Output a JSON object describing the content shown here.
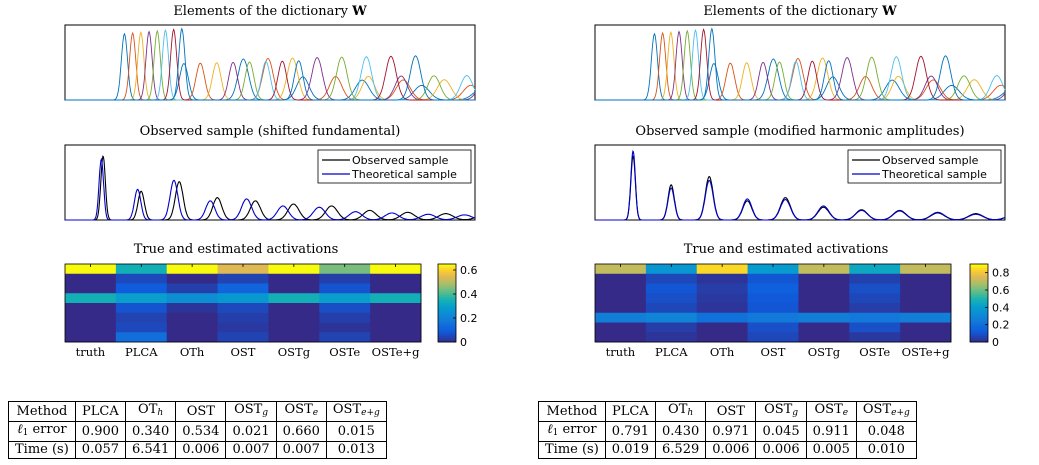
{
  "panels": [
    {
      "side": "left",
      "dict_title": "Elements of the dictionary",
      "dict_title_bold": "W",
      "sample_title": "Observed sample (shifted fundamental)",
      "act_title": "True and estimated activations",
      "legend": [
        "Observed sample",
        "Theoretical sample"
      ],
      "colorbar_ticks": [
        "0.6",
        "0.4",
        "0.2",
        "0"
      ],
      "methods": [
        "truth",
        "PLCA",
        "OTh",
        "OST",
        "OSTg",
        "OSTe",
        "OSTe+g"
      ]
    },
    {
      "side": "right",
      "dict_title": "Elements of the dictionary",
      "dict_title_bold": "W",
      "sample_title": "Observed sample (modified harmonic amplitudes)",
      "act_title": "True and estimated activations",
      "legend": [
        "Observed sample",
        "Theoretical sample"
      ],
      "colorbar_ticks": [
        "0.8",
        "0.6",
        "0.4",
        "0.2",
        "0"
      ],
      "methods": [
        "truth",
        "PLCA",
        "OTh",
        "OST",
        "OSTg",
        "OSTe",
        "OSTe+g"
      ]
    }
  ],
  "tables": [
    {
      "header": [
        "Method",
        "PLCA",
        "OT",
        "OST",
        "OST",
        "OST",
        "OST"
      ],
      "header_sub": [
        "",
        "",
        "h",
        "",
        "g",
        "e",
        "e+g"
      ],
      "rows": [
        {
          "label": "ℓ",
          "label_sub": "1",
          "label_rest": " error",
          "values": [
            "0.900",
            "0.340",
            "0.534",
            "0.021",
            "0.660",
            "0.015"
          ]
        },
        {
          "label": "Time (s)",
          "label_sub": "",
          "label_rest": "",
          "values": [
            "0.057",
            "6.541",
            "0.006",
            "0.007",
            "0.007",
            "0.013"
          ]
        }
      ]
    },
    {
      "header": [
        "Method",
        "PLCA",
        "OT",
        "OST",
        "OST",
        "OST",
        "OST"
      ],
      "header_sub": [
        "",
        "",
        "h",
        "",
        "g",
        "e",
        "e+g"
      ],
      "rows": [
        {
          "label": "ℓ",
          "label_sub": "1",
          "label_rest": " error",
          "values": [
            "0.791",
            "0.430",
            "0.971",
            "0.045",
            "0.911",
            "0.048"
          ]
        },
        {
          "label": "Time (s)",
          "label_sub": "",
          "label_rest": "",
          "values": [
            "0.019",
            "6.529",
            "0.006",
            "0.006",
            "0.005",
            "0.010"
          ]
        }
      ]
    }
  ],
  "chart_data": [
    {
      "type": "line",
      "title": "Elements of the dictionary W",
      "series_colors": [
        "#0072bd",
        "#d95319",
        "#edb120",
        "#7e2f8e",
        "#77ac30",
        "#4dbeee",
        "#a2142f",
        "#0072bd"
      ],
      "fundamentals": [
        0.145,
        0.165,
        0.185,
        0.205,
        0.225,
        0.245,
        0.265,
        0.285
      ],
      "harmonics": 12,
      "xlim": [
        0,
        1
      ],
      "ylim": [
        0,
        1
      ]
    },
    {
      "type": "line",
      "title": "Observed sample (shifted fundamental)",
      "legend": [
        "Observed sample",
        "Theoretical sample"
      ],
      "observed_fundamental": 0.108,
      "theoretical_fundamental": 0.103,
      "xlim": [
        0,
        1
      ]
    },
    {
      "type": "heatmap",
      "title": "True and estimated activations",
      "columns": [
        "truth",
        "PLCA",
        "OTh",
        "OST",
        "OSTg",
        "OSTe",
        "OSTe+g"
      ],
      "clim": [
        0,
        0.65
      ],
      "matrix": [
        [
          0.65,
          0.35,
          0.65,
          0.55,
          0.65,
          0.45,
          0.65
        ],
        [
          0.0,
          0.06,
          0.0,
          0.05,
          0.0,
          0.04,
          0.0
        ],
        [
          0.0,
          0.1,
          0.04,
          0.12,
          0.0,
          0.08,
          0.0
        ],
        [
          0.35,
          0.3,
          0.25,
          0.28,
          0.35,
          0.3,
          0.35
        ],
        [
          0.0,
          0.08,
          0.02,
          0.06,
          0.0,
          0.07,
          0.0
        ],
        [
          0.0,
          0.05,
          0.0,
          0.04,
          0.0,
          0.04,
          0.0
        ],
        [
          0.0,
          0.06,
          0.0,
          0.03,
          0.0,
          0.02,
          0.0
        ],
        [
          0.0,
          0.15,
          0.0,
          0.05,
          0.0,
          0.05,
          0.0
        ]
      ]
    },
    {
      "type": "line",
      "title": "Elements of the dictionary W",
      "series_colors": [
        "#0072bd",
        "#d95319",
        "#edb120",
        "#7e2f8e",
        "#77ac30",
        "#4dbeee",
        "#a2142f",
        "#0072bd"
      ],
      "fundamentals": [
        0.145,
        0.165,
        0.185,
        0.205,
        0.225,
        0.245,
        0.265,
        0.285
      ],
      "harmonics": 12,
      "xlim": [
        0,
        1
      ],
      "ylim": [
        0,
        1
      ]
    },
    {
      "type": "line",
      "title": "Observed sample (modified harmonic amplitudes)",
      "legend": [
        "Observed sample",
        "Theoretical sample"
      ],
      "observed_fundamental": 0.108,
      "theoretical_fundamental": 0.108,
      "xlim": [
        0,
        1
      ]
    },
    {
      "type": "heatmap",
      "title": "True and estimated activations",
      "columns": [
        "truth",
        "PLCA",
        "OTh",
        "OST",
        "OSTg",
        "OSTe",
        "OSTe+g"
      ],
      "clim": [
        0,
        0.9
      ],
      "matrix": [
        [
          0.72,
          0.38,
          0.85,
          0.4,
          0.72,
          0.45,
          0.72
        ],
        [
          0.0,
          0.08,
          0.03,
          0.12,
          0.0,
          0.06,
          0.0
        ],
        [
          0.0,
          0.12,
          0.05,
          0.15,
          0.0,
          0.1,
          0.0
        ],
        [
          0.0,
          0.1,
          0.04,
          0.13,
          0.0,
          0.08,
          0.0
        ],
        [
          0.0,
          0.08,
          0.03,
          0.12,
          0.0,
          0.05,
          0.0
        ],
        [
          0.28,
          0.3,
          0.22,
          0.25,
          0.28,
          0.25,
          0.28
        ],
        [
          0.0,
          0.05,
          0.0,
          0.1,
          0.0,
          0.1,
          0.0
        ],
        [
          0.0,
          0.03,
          0.0,
          0.08,
          0.0,
          0.04,
          0.0
        ]
      ]
    }
  ]
}
